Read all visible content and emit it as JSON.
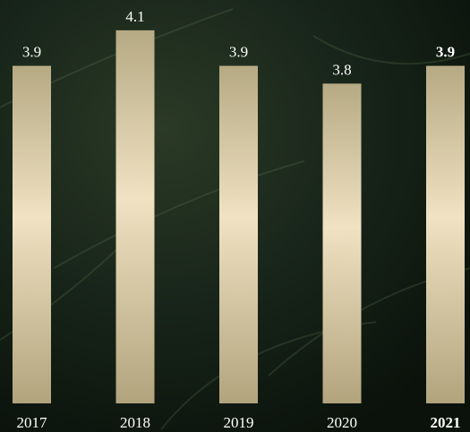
{
  "chart_data": {
    "type": "bar",
    "categories": [
      "2017",
      "2018",
      "2019",
      "2020",
      "2021"
    ],
    "values": [
      3.9,
      4.1,
      3.9,
      3.8,
      3.9
    ],
    "ylim": [
      2,
      4.2
    ],
    "bold_index": 4
  }
}
